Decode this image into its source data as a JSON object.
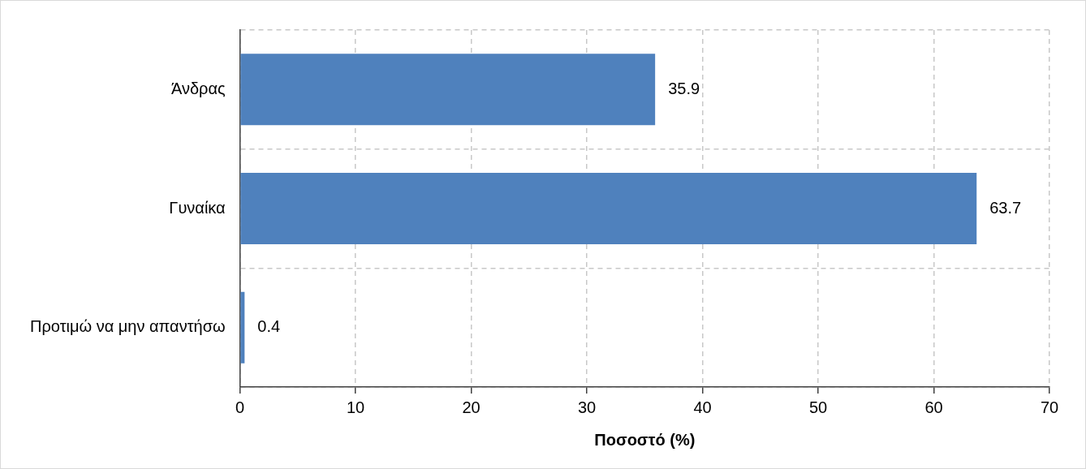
{
  "chart_data": {
    "type": "bar",
    "orientation": "horizontal",
    "categories": [
      "Άνδρας",
      "Γυναίκα",
      "Προτιμώ να μην απαντήσω"
    ],
    "values": [
      35.9,
      63.7,
      0.4
    ],
    "color": "#4f81bd",
    "xlabel": "Ποσοστό (%)",
    "xlim": [
      0,
      70
    ],
    "xticks": [
      0,
      10,
      20,
      30,
      40,
      50,
      60,
      70
    ],
    "grid": true,
    "data_labels": true,
    "legend": false
  }
}
